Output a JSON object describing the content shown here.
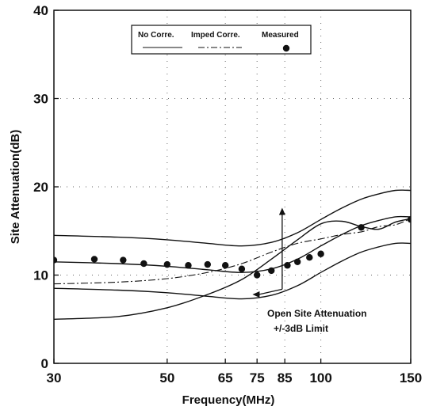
{
  "chart_data": {
    "type": "line",
    "title": "",
    "xlabel": "Frequency(MHz)",
    "ylabel": "Site  Attenuation(dB)",
    "xscale": "log",
    "xlim": [
      30,
      150
    ],
    "ylim": [
      0,
      40
    ],
    "x_ticks": [
      {
        "value": 30,
        "label": "30"
      },
      {
        "value": 50,
        "label": "50"
      },
      {
        "value": 65,
        "label": "65"
      },
      {
        "value": 75,
        "label": "75"
      },
      {
        "value": 85,
        "label": "85"
      },
      {
        "value": 100,
        "label": "100"
      },
      {
        "value": 150,
        "label": "150"
      }
    ],
    "y_ticks": [
      {
        "value": 0,
        "label": "0"
      },
      {
        "value": 10,
        "label": "10"
      },
      {
        "value": 20,
        "label": "20"
      },
      {
        "value": 30,
        "label": "30"
      },
      {
        "value": 40,
        "label": "40"
      }
    ],
    "grid": "dotted",
    "legend": {
      "placement": "top-center",
      "entries": [
        {
          "name": "No Corre.",
          "style": "solid"
        },
        {
          "name": "Imped Corre.",
          "style": "dash-dot"
        },
        {
          "name": "Measured",
          "style": "dot"
        }
      ]
    },
    "series": [
      {
        "name": "No Corre.",
        "style": "solid",
        "x": [
          30,
          40,
          50,
          60,
          70,
          80,
          90,
          100,
          110,
          120,
          130,
          140,
          150
        ],
        "y": [
          5.0,
          5.3,
          6.3,
          7.8,
          9.5,
          11.8,
          14.0,
          15.8,
          16.1,
          15.5,
          15.2,
          16.0,
          16.4
        ]
      },
      {
        "name": "Imped Corre.",
        "style": "dash-dot",
        "x": [
          30,
          40,
          50,
          60,
          70,
          80,
          90,
          100,
          110,
          120,
          130,
          140,
          150
        ],
        "y": [
          9.0,
          9.2,
          9.6,
          10.3,
          11.3,
          12.6,
          13.6,
          14.1,
          14.6,
          14.9,
          15.5,
          15.7,
          16.4
        ]
      },
      {
        "name": "Measured",
        "style": "dot",
        "x": [
          30,
          36,
          41,
          45,
          50,
          55,
          60,
          65,
          70,
          75,
          80,
          86,
          90,
          95,
          100,
          120,
          150
        ],
        "y": [
          11.7,
          11.8,
          11.7,
          11.3,
          11.2,
          11.1,
          11.2,
          11.1,
          10.7,
          10.0,
          10.5,
          11.1,
          11.5,
          12.0,
          12.4,
          15.4,
          16.3
        ]
      },
      {
        "name": "Open Site Attenuation",
        "style": "solid",
        "x": [
          30,
          40,
          50,
          60,
          70,
          80,
          90,
          100,
          110,
          120,
          130,
          140,
          150
        ],
        "y": [
          11.5,
          11.3,
          11.0,
          10.6,
          10.3,
          10.7,
          11.8,
          13.3,
          14.6,
          15.6,
          16.2,
          16.6,
          16.6
        ]
      },
      {
        "name": "+3dB Limit",
        "style": "solid",
        "x": [
          30,
          40,
          50,
          60,
          70,
          80,
          90,
          100,
          110,
          120,
          130,
          140,
          150
        ],
        "y": [
          14.5,
          14.3,
          14.0,
          13.6,
          13.3,
          13.7,
          14.8,
          16.3,
          17.6,
          18.6,
          19.2,
          19.6,
          19.6
        ]
      },
      {
        "name": "-3dB Limit",
        "style": "solid",
        "x": [
          30,
          40,
          50,
          60,
          70,
          80,
          90,
          100,
          110,
          120,
          130,
          140,
          150
        ],
        "y": [
          8.5,
          8.3,
          8.0,
          7.6,
          7.3,
          7.7,
          8.8,
          10.3,
          11.6,
          12.6,
          13.2,
          13.6,
          13.6
        ]
      }
    ],
    "annotations": [
      {
        "text_lines": [
          "Open Site Attenuation",
          "+/-3dB Limit"
        ],
        "arrow_to": [
          {
            "x": 84,
            "y": 17.0
          },
          {
            "x": 74,
            "y": 7.8
          }
        ]
      }
    ]
  }
}
